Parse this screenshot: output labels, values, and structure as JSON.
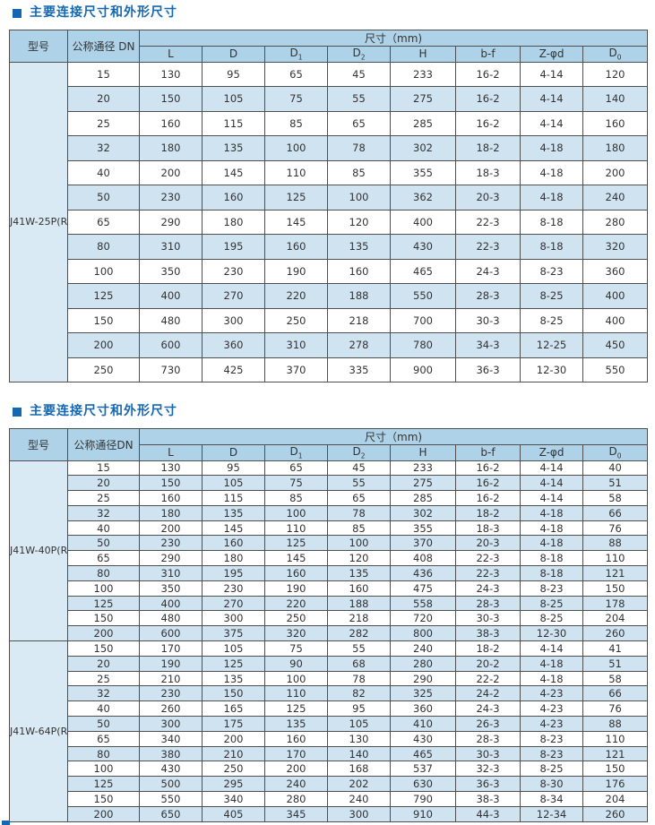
{
  "colors": {
    "title_blue": "#1667b1",
    "table_header_bg": "#aed3e8",
    "row_alternate_bg": "#cfe3f1",
    "model_column_bg": "#d9eaf5",
    "border": "#4f4f4f",
    "text": "#333333"
  },
  "sections": [
    {
      "title": "主要连接尺寸和外形尺寸",
      "table": {
        "header": {
          "model": "型号",
          "dn": "公称通径 DN",
          "size_group": "尺寸（mm)",
          "columns": [
            {
              "base": "L"
            },
            {
              "base": "D"
            },
            {
              "base": "D",
              "sub": "1"
            },
            {
              "base": "D",
              "sub": "2"
            },
            {
              "base": "H"
            },
            {
              "base": "b-f"
            },
            {
              "base": "Z-φd"
            },
            {
              "base": "D",
              "sub": "0"
            }
          ]
        },
        "groups": [
          {
            "model": "J41W-25P(R)",
            "rows": [
              [
                "15",
                "130",
                "95",
                "65",
                "45",
                "233",
                "16-2",
                "4-14",
                "120"
              ],
              [
                "20",
                "150",
                "105",
                "75",
                "55",
                "275",
                "16-2",
                "4-14",
                "140"
              ],
              [
                "25",
                "160",
                "115",
                "85",
                "65",
                "285",
                "16-2",
                "4-14",
                "160"
              ],
              [
                "32",
                "180",
                "135",
                "100",
                "78",
                "302",
                "18-2",
                "4-18",
                "180"
              ],
              [
                "40",
                "200",
                "145",
                "110",
                "85",
                "355",
                "18-3",
                "4-18",
                "200"
              ],
              [
                "50",
                "230",
                "160",
                "125",
                "100",
                "362",
                "20-3",
                "4-18",
                "240"
              ],
              [
                "65",
                "290",
                "180",
                "145",
                "120",
                "400",
                "22-3",
                "8-18",
                "280"
              ],
              [
                "80",
                "310",
                "195",
                "160",
                "135",
                "430",
                "22-3",
                "8-18",
                "320"
              ],
              [
                "100",
                "350",
                "230",
                "190",
                "160",
                "465",
                "24-3",
                "8-23",
                "360"
              ],
              [
                "125",
                "400",
                "270",
                "220",
                "188",
                "550",
                "28-3",
                "8-25",
                "400"
              ],
              [
                "150",
                "480",
                "300",
                "250",
                "218",
                "700",
                "30-3",
                "8-25",
                "400"
              ],
              [
                "200",
                "600",
                "360",
                "310",
                "278",
                "780",
                "34-3",
                "12-25",
                "450"
              ],
              [
                "250",
                "730",
                "425",
                "370",
                "335",
                "900",
                "36-3",
                "12-30",
                "550"
              ]
            ]
          }
        ]
      }
    },
    {
      "title": "主要连接尺寸和外形尺寸",
      "table": {
        "header": {
          "model": "型号",
          "dn": "公称通径DN",
          "size_group": "尺寸（mm)",
          "columns": [
            {
              "base": "L"
            },
            {
              "base": "D"
            },
            {
              "base": "D",
              "sub": "1"
            },
            {
              "base": "D",
              "sub": "2"
            },
            {
              "base": "H"
            },
            {
              "base": "b-f"
            },
            {
              "base": "Z-φd"
            },
            {
              "base": "D",
              "sub": "0"
            }
          ]
        },
        "groups": [
          {
            "model": "J41W-40P(R)",
            "rows": [
              [
                "15",
                "130",
                "95",
                "65",
                "45",
                "233",
                "16-2",
                "4-14",
                "40"
              ],
              [
                "20",
                "150",
                "105",
                "75",
                "55",
                "275",
                "16-2",
                "4-14",
                "51"
              ],
              [
                "25",
                "160",
                "115",
                "85",
                "65",
                "285",
                "16-2",
                "4-14",
                "58"
              ],
              [
                "32",
                "180",
                "135",
                "100",
                "78",
                "302",
                "18-2",
                "4-18",
                "66"
              ],
              [
                "40",
                "200",
                "145",
                "110",
                "85",
                "355",
                "18-3",
                "4-18",
                "76"
              ],
              [
                "50",
                "230",
                "160",
                "125",
                "100",
                "370",
                "20-3",
                "4-18",
                "88"
              ],
              [
                "65",
                "290",
                "180",
                "145",
                "120",
                "408",
                "22-3",
                "8-18",
                "110"
              ],
              [
                "80",
                "310",
                "195",
                "160",
                "135",
                "436",
                "22-3",
                "8-18",
                "121"
              ],
              [
                "100",
                "350",
                "230",
                "190",
                "160",
                "475",
                "24-3",
                "8-23",
                "150"
              ],
              [
                "125",
                "400",
                "270",
                "220",
                "188",
                "558",
                "28-3",
                "8-25",
                "178"
              ],
              [
                "150",
                "480",
                "300",
                "250",
                "218",
                "720",
                "30-3",
                "8-25",
                "204"
              ],
              [
                "200",
                "600",
                "375",
                "320",
                "282",
                "800",
                "38-3",
                "12-30",
                "260"
              ]
            ]
          },
          {
            "model": "J41W-64P(R)",
            "rows": [
              [
                "150",
                "170",
                "105",
                "75",
                "55",
                "240",
                "18-2",
                "4-14",
                "41"
              ],
              [
                "20",
                "190",
                "125",
                "90",
                "68",
                "280",
                "20-2",
                "4-18",
                "51"
              ],
              [
                "25",
                "210",
                "135",
                "100",
                "78",
                "290",
                "22-2",
                "4-18",
                "58"
              ],
              [
                "32",
                "230",
                "150",
                "110",
                "82",
                "325",
                "24-2",
                "4-23",
                "66"
              ],
              [
                "40",
                "260",
                "165",
                "125",
                "95",
                "360",
                "24-3",
                "4-23",
                "76"
              ],
              [
                "50",
                "300",
                "175",
                "135",
                "105",
                "410",
                "26-3",
                "4-23",
                "88"
              ],
              [
                "65",
                "340",
                "200",
                "160",
                "130",
                "430",
                "28-3",
                "8-23",
                "110"
              ],
              [
                "80",
                "380",
                "210",
                "170",
                "140",
                "465",
                "30-3",
                "8-23",
                "121"
              ],
              [
                "100",
                "430",
                "250",
                "200",
                "168",
                "537",
                "32-3",
                "8-25",
                "150"
              ],
              [
                "125",
                "500",
                "295",
                "240",
                "202",
                "630",
                "36-3",
                "8-30",
                "176"
              ],
              [
                "150",
                "550",
                "340",
                "280",
                "240",
                "790",
                "38-3",
                "8-34",
                "204"
              ],
              [
                "200",
                "650",
                "405",
                "345",
                "300",
                "910",
                "44-3",
                "12-34",
                "260"
              ]
            ]
          }
        ]
      }
    }
  ]
}
